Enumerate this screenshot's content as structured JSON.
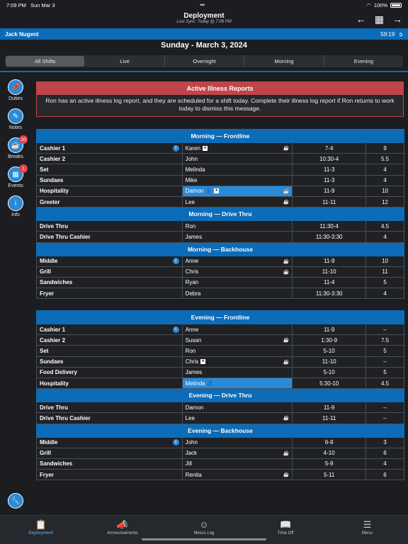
{
  "status": {
    "time": "7:09 PM",
    "date": "Sun Mar 3",
    "battery": "100%"
  },
  "header": {
    "title": "Deployment",
    "subtitle": "Last Sync: Today @ 7:08 PM"
  },
  "user": {
    "name": "Jack Nugent",
    "timer": "59:19"
  },
  "date_title": "Sunday - March 3, 2024",
  "tabs": [
    "All Shifts",
    "Live",
    "Overnight",
    "Morning",
    "Evening"
  ],
  "sidebar": [
    {
      "label": "Duties",
      "icon": "pin-icon"
    },
    {
      "label": "Notes",
      "icon": "note-icon"
    },
    {
      "label": "Breaks",
      "icon": "coffee-icon",
      "badge": "10"
    },
    {
      "label": "Events",
      "icon": "calendar-icon",
      "badge": "1"
    },
    {
      "label": "Info",
      "icon": "info-icon"
    }
  ],
  "alert": {
    "title": "Active Illness Reports",
    "body": "Ron has an active illness log report, and they are scheduled for a shift today. Complete their illness log report if Ron returns to work today to dismiss this message."
  },
  "morning": [
    {
      "section": "Morning — Frontline",
      "rows": [
        {
          "role": "Cashier 1",
          "info": true,
          "emp": "Karen",
          "sq": true,
          "cup": true,
          "time": "7-4",
          "hrs": "9"
        },
        {
          "role": "Cashier 2",
          "emp": "John",
          "time": "10:30-4",
          "hrs": "5.5"
        },
        {
          "role": "Set",
          "emp": "Melinda",
          "time": "11-3",
          "hrs": "4"
        },
        {
          "role": "Sundaes",
          "emp": "Mike",
          "time": "11-3",
          "hrs": "4"
        },
        {
          "role": "Hospitality",
          "emp": "Damon",
          "person": true,
          "sq": true,
          "cup": true,
          "hl": true,
          "time": "11-9",
          "hrs": "10"
        },
        {
          "role": "Greeter",
          "emp": "Lee",
          "cup": true,
          "time": "11-11",
          "hrs": "12"
        }
      ]
    },
    {
      "section": "Morning — Drive Thru",
      "rows": [
        {
          "role": "Drive Thru",
          "emp": "Ron",
          "time": "11:30-4",
          "hrs": "4.5"
        },
        {
          "role": "Drive Thru Cashier",
          "emp": "James",
          "time": "11:30-3:30",
          "hrs": "4"
        }
      ]
    },
    {
      "section": "Morning — Backhouse",
      "rows": [
        {
          "role": "Middle",
          "info": true,
          "emp": "Anne",
          "cup": true,
          "time": "11-9",
          "hrs": "10"
        },
        {
          "role": "Grill",
          "emp": "Chris",
          "cup": true,
          "time": "11-10",
          "hrs": "11"
        },
        {
          "role": "Sandwiches",
          "emp": "Ryan",
          "time": "11-4",
          "hrs": "5"
        },
        {
          "role": "Fryer",
          "emp": "Debra",
          "time": "11:30-3:30",
          "hrs": "4"
        }
      ]
    }
  ],
  "evening": [
    {
      "section": "Evening — Frontline",
      "rows": [
        {
          "role": "Cashier 1",
          "info": true,
          "emp": "Anne",
          "time": "11-9",
          "hrs": "–"
        },
        {
          "role": "Cashier 2",
          "emp": "Susan",
          "cup": true,
          "time": "1:30-9",
          "hrs": "7.5"
        },
        {
          "role": "Set",
          "emp": "Ron",
          "time": "5-10",
          "hrs": "5"
        },
        {
          "role": "Sundaes",
          "emp": "Chris",
          "sq": true,
          "cup": true,
          "time": "11-10",
          "hrs": "–"
        },
        {
          "role": "Food Delivery",
          "emp": "James",
          "time": "5-10",
          "hrs": "5"
        },
        {
          "role": "Hospitality",
          "emp": "Melinda",
          "person": true,
          "hl": true,
          "time": "5:30-10",
          "hrs": "4.5"
        }
      ]
    },
    {
      "section": "Evening — Drive Thru",
      "rows": [
        {
          "role": "Drive Thru",
          "emp": "Damon",
          "time": "11-9",
          "hrs": "–"
        },
        {
          "role": "Drive Thru Cashier",
          "emp": "Lee",
          "cup": true,
          "time": "11-11",
          "hrs": "–"
        }
      ]
    },
    {
      "section": "Evening — Backhouse",
      "rows": [
        {
          "role": "Middle",
          "info": true,
          "emp": "John",
          "time": "6-9",
          "hrs": "3"
        },
        {
          "role": "Grill",
          "emp": "Jack",
          "cup": true,
          "time": "4-10",
          "hrs": "6"
        },
        {
          "role": "Sandwiches",
          "emp": "Jill",
          "time": "5-9",
          "hrs": "4"
        },
        {
          "role": "Fryer",
          "emp": "Renita",
          "cup": true,
          "time": "5-11",
          "hrs": "6"
        }
      ]
    }
  ],
  "bottom_tabs": [
    {
      "label": "Deployment",
      "icon": "clipboard-icon",
      "active": true
    },
    {
      "label": "Announcements",
      "icon": "megaphone-icon"
    },
    {
      "label": "Illness Log",
      "icon": "sick-face-icon"
    },
    {
      "label": "Time Off",
      "icon": "book-icon"
    },
    {
      "label": "Menu",
      "icon": "menu-icon"
    }
  ]
}
